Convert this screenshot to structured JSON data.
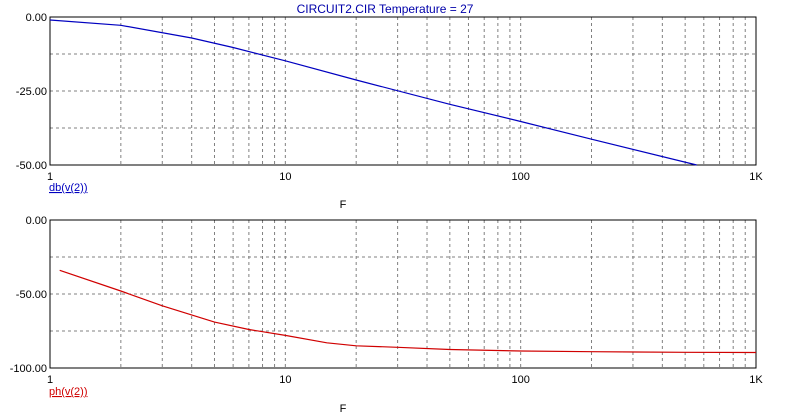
{
  "title": "CIRCUIT2.CIR Temperature = 27",
  "colors": {
    "title": "#0000aa",
    "axis": "#000000",
    "grid": "#808080",
    "magnitude": "#0000c0",
    "phase": "#d00000"
  },
  "chart_data": [
    {
      "type": "line",
      "title": "CIRCUIT2.CIR Temperature = 27",
      "xlabel": "F",
      "ylabel": "",
      "x_scale": "log",
      "xlim": [
        1,
        1000
      ],
      "ylim": [
        -50,
        0
      ],
      "x_ticks": [
        1,
        10,
        100,
        1000
      ],
      "x_tick_labels": [
        "1",
        "10",
        "100",
        "1K"
      ],
      "y_ticks": [
        0,
        -25,
        -50
      ],
      "y_tick_labels": [
        "0.00",
        "-25.00",
        "-50.00"
      ],
      "grid": true,
      "legend": "bottom-left",
      "series": [
        {
          "name": "db(v(2))",
          "color": "#0000c0",
          "x": [
            1,
            2,
            4,
            6,
            10,
            20,
            50,
            100,
            200,
            560
          ],
          "y": [
            -1.0,
            -2.8,
            -7.1,
            -10.3,
            -14.8,
            -21.3,
            -29.5,
            -35.3,
            -41.3,
            -50.0
          ]
        }
      ]
    },
    {
      "type": "line",
      "title": "",
      "xlabel": "F",
      "ylabel": "",
      "x_scale": "log",
      "xlim": [
        1,
        1000
      ],
      "ylim": [
        -100,
        0
      ],
      "x_ticks": [
        1,
        10,
        100,
        1000
      ],
      "x_tick_labels": [
        "1",
        "10",
        "100",
        "1K"
      ],
      "y_ticks": [
        0,
        -50,
        -100
      ],
      "y_tick_labels": [
        "0.00",
        "-50.00",
        "-100.00"
      ],
      "grid": true,
      "legend": "bottom-left",
      "series": [
        {
          "name": "ph(v(2))",
          "color": "#d00000",
          "x": [
            1.1,
            2,
            3,
            5,
            7,
            10,
            15,
            20,
            30,
            50,
            100,
            200,
            500,
            1000
          ],
          "y": [
            -34,
            -48,
            -58,
            -69,
            -74,
            -78,
            -83,
            -85,
            -86,
            -87.5,
            -88.5,
            -89,
            -89.4,
            -89.5
          ]
        }
      ]
    }
  ]
}
